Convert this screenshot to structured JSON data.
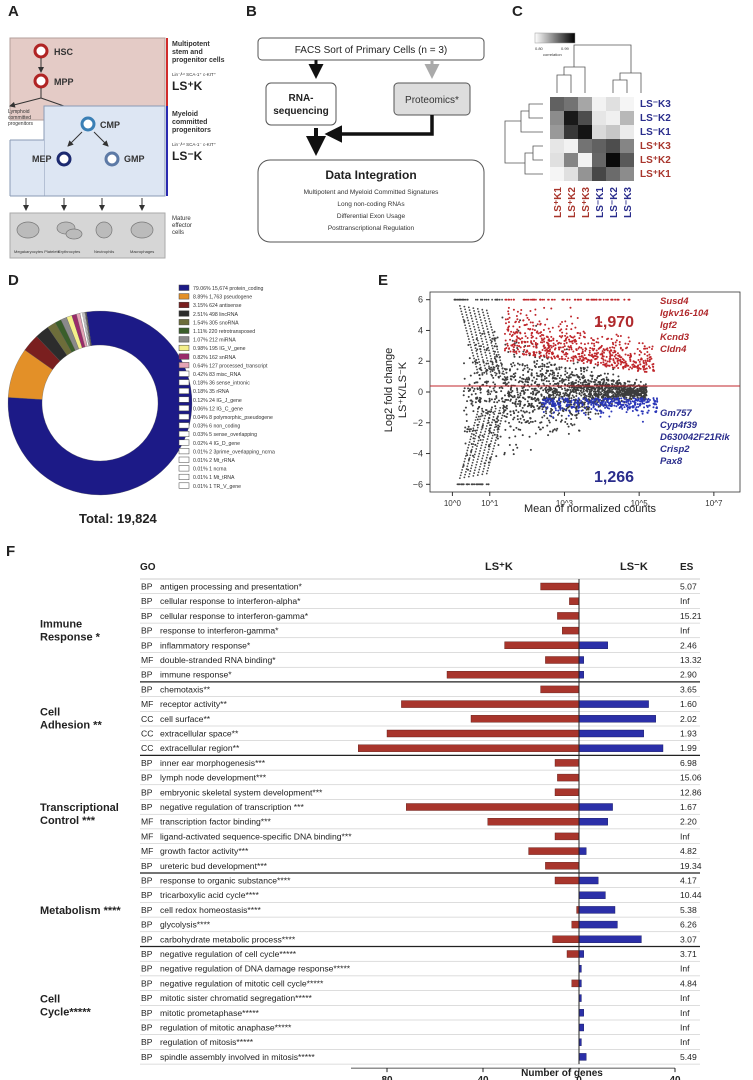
{
  "panels": {
    "a": "A",
    "b": "B",
    "c": "C",
    "d": "D",
    "e": "E",
    "f": "F"
  },
  "panel_a": {
    "hsc": "HSC",
    "mpp": "MPP",
    "cmp": "CMP",
    "mep": "MEP",
    "gmp": "GMP",
    "group1_title": "Multipotent stem and progenitor cells",
    "group1_markers": "Lin⁻/ᴸᵒ SCA-1⁺ c-KIT⁺",
    "group1_label": "LS⁺K",
    "group2_title": "Myeloid committed progenitors",
    "group2_markers": "Lin⁻/ᴸᵒ SCA-1⁻ c-KIT⁺",
    "group2_label": "LS⁻K",
    "lymphoid": "Lymphoid committed progenitors",
    "mature": "Mature effector cells",
    "cells": [
      "Megakaryocytes Platelets",
      "Erythrocytes",
      "Neutrophils",
      "Macrophages"
    ]
  },
  "panel_b": {
    "facs": "FACS Sort of Primary Cells (n = 3)",
    "rnaseq_1": "RNA-",
    "rnaseq_2": "sequencing",
    "proteomics": "Proteomics*",
    "integration_title": "Data Integration",
    "items": [
      "Multipotent and Myeloid Committed Signatures",
      "Long non-coding RNAs",
      "Differential Exon Usage",
      "Posttranscriptional Regulation"
    ]
  },
  "panel_c": {
    "scale_min": "0.80",
    "scale_max": "0.99",
    "scale_label": "correlation",
    "rows": [
      "LS⁻K3",
      "LS⁻K2",
      "LS⁻K1",
      "LS⁺K3",
      "LS⁺K2",
      "LS⁺K1"
    ],
    "cols": [
      "LS⁺K1",
      "LS⁺K2",
      "LS⁺K3",
      "LS⁻K1",
      "LS⁻K2",
      "LS⁻K3"
    ],
    "matrix": [
      [
        0.62,
        0.55,
        0.35,
        0.05,
        0.12,
        0.04
      ],
      [
        0.45,
        0.9,
        0.7,
        0.1,
        0.06,
        0.28
      ],
      [
        0.4,
        0.78,
        0.92,
        0.15,
        0.22,
        0.08
      ],
      [
        0.1,
        0.05,
        0.55,
        0.62,
        0.7,
        0.48
      ],
      [
        0.12,
        0.48,
        0.05,
        0.6,
        0.96,
        0.65
      ],
      [
        0.04,
        0.12,
        0.42,
        0.72,
        0.58,
        0.45
      ]
    ]
  },
  "panel_d": {
    "total": "Total: 19,824",
    "legend": [
      {
        "text": "79.06% 15,674 protein_coding",
        "value": 79.06,
        "color": "#1c1a87"
      },
      {
        "text": "8.89% 1,763 pseudogene",
        "value": 8.89,
        "color": "#e39028"
      },
      {
        "text": "3.15% 624 antisense",
        "value": 3.15,
        "color": "#7a1f1f"
      },
      {
        "text": "2.51% 498 lincRNA",
        "value": 2.51,
        "color": "#2c2c2c"
      },
      {
        "text": "1.54% 305 snoRNA",
        "value": 1.54,
        "color": "#6d6d3a"
      },
      {
        "text": "1.11% 220 retrotransposed",
        "value": 1.11,
        "color": "#3a5f2a"
      },
      {
        "text": "1.07% 212 miRNA",
        "value": 1.07,
        "color": "#8a8a8a"
      },
      {
        "text": "0.98% 195 IG_V_gene",
        "value": 0.98,
        "color": "#f4ef8a"
      },
      {
        "text": "0.82% 162 snRNA",
        "value": 0.82,
        "color": "#9a2a6a"
      },
      {
        "text": "0.64% 127 processed_transcript",
        "value": 0.64,
        "color": "#e5a4b6"
      },
      {
        "text": "0.42% 83 misc_RNA",
        "value": 0.42,
        "color": "#ffffff"
      },
      {
        "text": "0.18% 36 sense_intronic",
        "value": 0.18,
        "color": "#ffffff"
      },
      {
        "text": "0.18% 35 rRNA",
        "value": 0.18,
        "color": "#ffffff"
      },
      {
        "text": "0.12% 24 IG_J_gene",
        "value": 0.12,
        "color": "#ffffff"
      },
      {
        "text": "0.06% 12 IG_C_gene",
        "value": 0.06,
        "color": "#ffffff"
      },
      {
        "text": "0.04% 8 polymorphic_pseudogene",
        "value": 0.04,
        "color": "#ffffff"
      },
      {
        "text": "0.03% 6 non_coding",
        "value": 0.03,
        "color": "#ffffff"
      },
      {
        "text": "0.03% 5 sense_overlapping",
        "value": 0.03,
        "color": "#ffffff"
      },
      {
        "text": "0.02% 4 IG_D_gene",
        "value": 0.02,
        "color": "#ffffff"
      },
      {
        "text": "0.01% 2 3prime_overlapping_ncrna",
        "value": 0.01,
        "color": "#ffffff"
      },
      {
        "text": "0.01% 2 Mt_rRNA",
        "value": 0.01,
        "color": "#ffffff"
      },
      {
        "text": "0.01% 1 ncrna",
        "value": 0.01,
        "color": "#ffffff"
      },
      {
        "text": "0.01% 1 Mt_tRNA",
        "value": 0.01,
        "color": "#ffffff"
      },
      {
        "text": "0.01% 1 TR_V_gene",
        "value": 0.01,
        "color": "#ffffff"
      }
    ]
  },
  "panel_e": {
    "ylabel_1": "Log2 fold change",
    "ylabel_2": "LS⁺K/LS⁻K",
    "xlabel": "Mean of normalized counts",
    "xticks": [
      "10^0",
      "10^1",
      "10^3",
      "10^5",
      "10^7"
    ],
    "yticks": [
      "6",
      "4",
      "2",
      "0",
      "−2",
      "−4",
      "−6"
    ],
    "up_count": "1,970",
    "down_count": "1,266",
    "up_genes": [
      "Susd4",
      "Igkv16-104",
      "Igf2",
      "Kcnd3",
      "Cldn4"
    ],
    "down_genes": [
      "Gm757",
      "Cyp4f39",
      "D630042F21Rik",
      "Crisp2",
      "Pax8"
    ],
    "up_color": "#c0262b",
    "down_color": "#2935b8"
  },
  "panel_f": {
    "go_header": "GO",
    "es_header": "ES",
    "left_header": "LS⁺K",
    "right_header": "LS⁻K",
    "xlabel": "Number of genes",
    "xticks": [
      {
        "label": "80",
        "v": -80
      },
      {
        "label": "40",
        "v": -40
      },
      {
        "label": "0",
        "v": 0
      },
      {
        "label": "40",
        "v": 40
      }
    ],
    "groups": [
      {
        "label_1": "Immune",
        "label_2": "Response *",
        "rows": [
          0,
          6
        ]
      },
      {
        "label_1": "Cell",
        "label_2": "Adhesion **",
        "rows": [
          7,
          11
        ]
      },
      {
        "label_1": "Transcriptional",
        "label_2": "Control ***",
        "rows": [
          12,
          19
        ]
      },
      {
        "label_1": "Metabolism ****",
        "label_2": "",
        "rows": [
          20,
          24
        ]
      },
      {
        "label_1": "Cell",
        "label_2": "Cycle*****",
        "rows": [
          25,
          32
        ]
      }
    ],
    "rows": [
      {
        "go": "BP",
        "term": "antigen processing and presentation*",
        "left": 16,
        "right": 0,
        "es": "5.07"
      },
      {
        "go": "BP",
        "term": "cellular response to interferon-alpha*",
        "left": 4,
        "right": 0,
        "es": "Inf"
      },
      {
        "go": "BP",
        "term": "cellular response to interferon-gamma*",
        "left": 9,
        "right": 0,
        "es": "15.21"
      },
      {
        "go": "BP",
        "term": "response to interferon-gamma*",
        "left": 7,
        "right": 0,
        "es": "Inf"
      },
      {
        "go": "BP",
        "term": "inflammatory response*",
        "left": 31,
        "right": 12,
        "es": "2.46"
      },
      {
        "go": "MF",
        "term": "double-stranded RNA binding*",
        "left": 14,
        "right": 2,
        "es": "13.32"
      },
      {
        "go": "BP",
        "term": "immune response*",
        "left": 55,
        "right": 2,
        "es": "2.90"
      },
      {
        "go": "BP",
        "term": "chemotaxis**",
        "left": 16,
        "right": 0,
        "es": "3.65"
      },
      {
        "go": "MF",
        "term": "receptor activity**",
        "left": 74,
        "right": 29,
        "es": "1.60"
      },
      {
        "go": "CC",
        "term": "cell surface**",
        "left": 45,
        "right": 32,
        "es": "2.02"
      },
      {
        "go": "CC",
        "term": "extracellular space**",
        "left": 80,
        "right": 27,
        "es": "1.93"
      },
      {
        "go": "CC",
        "term": "extracellular region**",
        "left": 92,
        "right": 35,
        "es": "1.99"
      },
      {
        "go": "BP",
        "term": "inner ear morphogenesis***",
        "left": 10,
        "right": 0,
        "es": "6.98"
      },
      {
        "go": "BP",
        "term": "lymph node development***",
        "left": 9,
        "right": 0,
        "es": "15.06"
      },
      {
        "go": "BP",
        "term": "embryonic skeletal system development***",
        "left": 10,
        "right": 0,
        "es": "12.86"
      },
      {
        "go": "BP",
        "term": "negative regulation of transcription ***",
        "left": 72,
        "right": 14,
        "es": "1.67"
      },
      {
        "go": "MF",
        "term": "transcription factor binding***",
        "left": 38,
        "right": 12,
        "es": "2.20"
      },
      {
        "go": "MF",
        "term": "ligand-activated sequence-specific DNA binding***",
        "left": 10,
        "right": 0,
        "es": "Inf"
      },
      {
        "go": "MF",
        "term": "growth factor activity***",
        "left": 21,
        "right": 3,
        "es": "4.82"
      },
      {
        "go": "BP",
        "term": "ureteric bud development***",
        "left": 14,
        "right": 0,
        "es": "19.34"
      },
      {
        "go": "BP",
        "term": "response to organic substance****",
        "left": 10,
        "right": 8,
        "es": "4.17"
      },
      {
        "go": "BP",
        "term": "tricarboxylic acid cycle****",
        "left": 0,
        "right": 11,
        "es": "10.44"
      },
      {
        "go": "BP",
        "term": "cell redox homeostasis****",
        "left": 1,
        "right": 15,
        "es": "5.38"
      },
      {
        "go": "BP",
        "term": "glycolysis****",
        "left": 3,
        "right": 16,
        "es": "6.26"
      },
      {
        "go": "BP",
        "term": "carbohydrate metabolic process****",
        "left": 11,
        "right": 26,
        "es": "3.07"
      },
      {
        "go": "BP",
        "term": "negative regulation of cell cycle*****",
        "left": 5,
        "right": 2,
        "es": "3.71"
      },
      {
        "go": "BP",
        "term": "negative regulation of DNA damage response*****",
        "left": 0,
        "right": 1,
        "es": "Inf"
      },
      {
        "go": "BP",
        "term": "negative regulation of mitotic cell cycle*****",
        "left": 3,
        "right": 1,
        "es": "4.84"
      },
      {
        "go": "BP",
        "term": "mitotic sister chromatid segregation*****",
        "left": 0,
        "right": 1,
        "es": "Inf"
      },
      {
        "go": "BP",
        "term": "mitotic prometaphase*****",
        "left": 0,
        "right": 2,
        "es": "Inf"
      },
      {
        "go": "BP",
        "term": "regulation of mitotic anaphase*****",
        "left": 0,
        "right": 2,
        "es": "Inf"
      },
      {
        "go": "BP",
        "term": "regulation of mitosis*****",
        "left": 0,
        "right": 1,
        "es": "Inf"
      },
      {
        "go": "BP",
        "term": "spindle assembly involved in mitosis*****",
        "left": 0,
        "right": 3,
        "es": "5.49"
      }
    ],
    "left_color": "#a8352c",
    "right_color": "#2b2fa8"
  }
}
